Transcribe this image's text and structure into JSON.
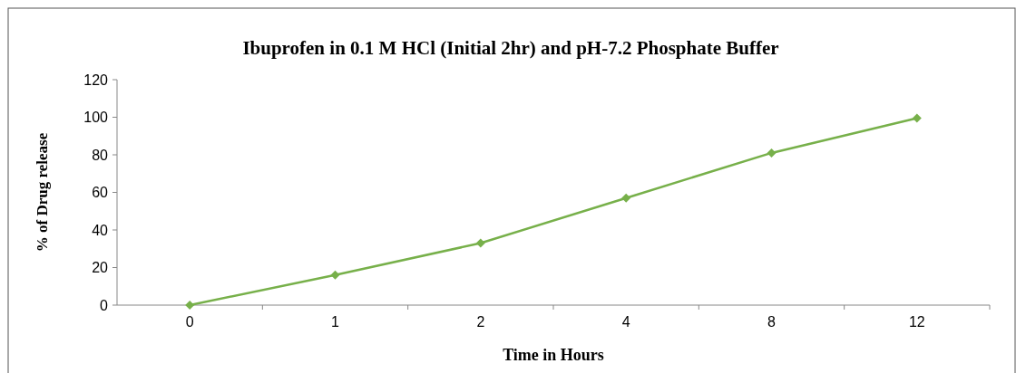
{
  "chart_data": {
    "type": "line",
    "title": "Ibuprofen in 0.1 M HCl (Initial 2hr) and pH-7.2 Phosphate Buffer",
    "xlabel": "Time in Hours",
    "ylabel": "% of Drug release",
    "categories": [
      "0",
      "1",
      "2",
      "4",
      "8",
      "12"
    ],
    "series": [
      {
        "color": "#77b04a",
        "values": [
          0,
          16,
          33,
          57,
          81,
          99.5
        ]
      }
    ],
    "ylim": [
      0,
      120
    ],
    "yticks": [
      0,
      20,
      40,
      60,
      80,
      100,
      120
    ],
    "marker": "diamond",
    "line_style": "solid"
  }
}
